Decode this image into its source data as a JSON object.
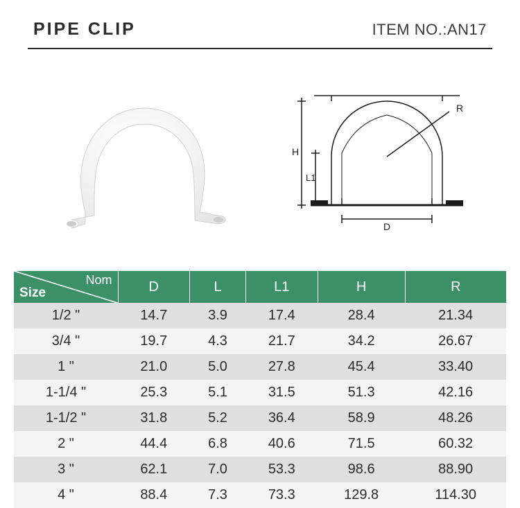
{
  "header": {
    "title": "PIPE CLIP",
    "item_no_label": "ITEM NO.:",
    "item_no_value": "AN17"
  },
  "table": {
    "header_bg": "#3c9068",
    "header_fg": "#ffffff",
    "row_odd_bg": "#dfdfdf",
    "row_even_bg": "#f4f4f4",
    "text_color": "#2a2a2a",
    "font_size_body": 20,
    "size_corner_top": "Nom",
    "size_corner_bottom": "Size",
    "columns": [
      "D",
      "L",
      "L1",
      "H",
      "R"
    ],
    "rows": [
      {
        "size": "1/2 \"",
        "D": "14.7",
        "L": "3.9",
        "L1": "17.4",
        "H": "28.4",
        "R": "21.34"
      },
      {
        "size": "3/4 \"",
        "D": "19.7",
        "L": "4.3",
        "L1": "21.7",
        "H": "34.2",
        "R": "26.67"
      },
      {
        "size": "1 \"",
        "D": "21.0",
        "L": "5.0",
        "L1": "27.8",
        "H": "45.4",
        "R": "33.40"
      },
      {
        "size": "1-1/4 \"",
        "D": "25.3",
        "L": "5.1",
        "L1": "31.5",
        "H": "51.3",
        "R": "42.16"
      },
      {
        "size": "1-1/2 \"",
        "D": "31.8",
        "L": "5.2",
        "L1": "36.4",
        "H": "58.9",
        "R": "48.26"
      },
      {
        "size": "2 \"",
        "D": "44.4",
        "L": "6.8",
        "L1": "40.6",
        "H": "71.5",
        "R": "60.32"
      },
      {
        "size": "3 \"",
        "D": "62.1",
        "L": "7.0",
        "L1": "53.3",
        "H": "98.6",
        "R": "88.90"
      },
      {
        "size": "4 \"",
        "D": "88.4",
        "L": "7.3",
        "L1": "73.3",
        "H": "129.8",
        "R": "114.30"
      }
    ]
  },
  "diagram_labels": {
    "R": "R",
    "H": "H",
    "L1": "L1",
    "D": "D"
  }
}
